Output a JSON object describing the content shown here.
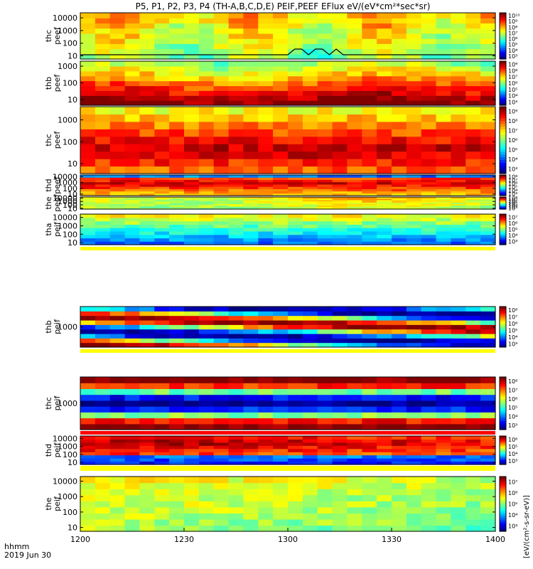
{
  "title": "P5, P1, P2, P3, P4 (TH-A,B,C,D,E) PEIF,PEEF EFlux eV/(eV*cm²*sec*sr)",
  "colorbar_units": "[eV/(cm²-s-sr-eV)]",
  "time_axis": {
    "label_line1": "hhmm",
    "label_line2": "2019 Jun 30",
    "ticks": [
      "1200",
      "1230",
      "1300",
      "1330",
      "1400"
    ],
    "range_minutes": [
      0,
      120
    ]
  },
  "chart_data": [
    {
      "type": "heatmap",
      "probe": "thc",
      "product": "peef",
      "ylabel_line1": "thc",
      "ylabel_line2": "peef",
      "y_ticks": [
        "10",
        "100",
        "1000",
        "10000"
      ],
      "cbar_ticks": [
        "10³",
        "10⁴",
        "10⁵",
        "10⁶",
        "10⁷",
        "10⁸",
        "10⁹",
        "10¹⁰"
      ],
      "overlay_line": true
    },
    {
      "type": "heatmap",
      "probe": "thb",
      "product": "peef",
      "ylabel_line1": "thb",
      "ylabel_line2": "peef",
      "y_ticks": [
        "10",
        "100",
        "1000"
      ],
      "cbar_ticks": [
        "10³",
        "10⁴",
        "10⁵",
        "10⁶",
        "10⁷",
        "10⁸",
        "10⁹"
      ]
    },
    {
      "type": "heatmap",
      "probe": "thc",
      "product": "peef",
      "ylabel_line1": "thc",
      "ylabel_line2": "peef",
      "y_ticks": [
        "10",
        "100",
        "1000"
      ],
      "cbar_ticks": [
        "10³",
        "10⁴",
        "10⁵",
        "10⁶",
        "10⁷",
        "10⁸",
        "10⁹"
      ]
    },
    {
      "type": "heatmap",
      "probe": "thd",
      "product": "peef",
      "ylabel_line1": "thd",
      "ylabel_line2": "peef",
      "y_ticks": [
        "10",
        "100",
        "1000",
        "10000"
      ],
      "cbar_ticks": [
        "10³",
        "10⁴",
        "10⁵",
        "10⁶",
        "10⁷",
        "10⁸"
      ]
    },
    {
      "type": "heatmap",
      "probe": "the",
      "product": "peef",
      "ylabel_line1": "the",
      "ylabel_line2": "peef",
      "y_ticks": [
        "10",
        "100",
        "1000",
        "10000"
      ],
      "cbar_ticks": [
        "10³",
        "10⁴",
        "10⁵",
        "10⁶",
        "10⁷",
        "10⁸"
      ]
    },
    {
      "type": "heatmap",
      "probe": "tha",
      "product": "peif",
      "ylabel_line1": "tha",
      "ylabel_line2": "peif",
      "y_ticks": [
        "10",
        "100",
        "1000",
        "10000"
      ],
      "cbar_ticks": [
        "10³",
        "10⁴",
        "10⁵",
        "10⁶",
        "10⁷"
      ]
    },
    {
      "type": "heatmap",
      "probe": "thb",
      "product": "peif",
      "ylabel_line1": "thb",
      "ylabel_line2": "peif",
      "y_ticks": [
        "1000"
      ],
      "cbar_ticks": [
        "10³",
        "10⁴",
        "10⁵",
        "10⁶",
        "10⁷",
        "10⁸"
      ]
    },
    {
      "type": "heatmap",
      "probe": "thc",
      "product": "peif",
      "ylabel_line1": "thc",
      "ylabel_line2": "peif",
      "y_ticks": [
        "1000"
      ],
      "cbar_ticks": [
        "10³",
        "10⁴",
        "10⁵",
        "10⁶",
        "10⁷",
        "10⁸"
      ]
    },
    {
      "type": "heatmap",
      "probe": "thd",
      "product": "peif",
      "ylabel_line1": "thd",
      "ylabel_line2": "peif",
      "y_ticks": [
        "10",
        "100",
        "1000",
        "10000"
      ],
      "cbar_ticks": [
        "10³",
        "10⁴",
        "10⁵",
        "10⁶"
      ]
    },
    {
      "type": "heatmap",
      "probe": "the",
      "product": "peif",
      "ylabel_line1": "the",
      "ylabel_line2": "peif",
      "y_ticks": [
        "10",
        "100",
        "1000",
        "10000"
      ],
      "cbar_ticks": [
        "10³",
        "10⁴",
        "10⁵",
        "10⁶",
        "10⁷"
      ]
    }
  ]
}
